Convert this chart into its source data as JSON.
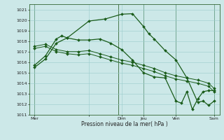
{
  "background_color": "#cce8e8",
  "grid_color": "#99cccc",
  "line_color": "#1a5c1a",
  "vline_color": "#336633",
  "ylim": [
    1011,
    1021.5
  ],
  "yticks": [
    1011,
    1012,
    1013,
    1014,
    1015,
    1016,
    1017,
    1018,
    1019,
    1020,
    1021
  ],
  "xlim": [
    0,
    17.5
  ],
  "day_positions": [
    0.5,
    5.5,
    8.5,
    10.5,
    13.5,
    17.0
  ],
  "day_labels": [
    "Mer",
    "",
    "Dim",
    "Jeu",
    "Ven",
    "Sam"
  ],
  "vline_positions": [
    0.5,
    8.2,
    10.5,
    13.5,
    17.0
  ],
  "xlabel": "Pression niveau de la mer( hPa )",
  "line1_x": [
    0.5,
    1.5,
    2.5,
    3.5,
    4.5,
    5.5,
    6.5,
    7.5,
    8.5,
    9.5,
    10.5,
    11.5,
    12.5,
    13.5,
    14.5,
    15.5,
    16.5,
    17.0
  ],
  "line1_y": [
    1017.5,
    1017.7,
    1017.2,
    1017.0,
    1017.0,
    1017.1,
    1016.8,
    1016.5,
    1016.2,
    1016.0,
    1015.7,
    1015.4,
    1015.0,
    1014.7,
    1014.5,
    1014.3,
    1014.0,
    1013.5
  ],
  "line2_x": [
    0.5,
    1.5,
    2.5,
    3.5,
    4.5,
    5.5,
    6.5,
    7.5,
    8.5,
    9.5,
    10.5,
    11.5,
    12.5,
    13.5,
    14.5,
    15.5,
    16.5,
    17.0
  ],
  "line2_y": [
    1017.3,
    1017.5,
    1017.0,
    1016.8,
    1016.7,
    1016.8,
    1016.5,
    1016.2,
    1015.9,
    1015.7,
    1015.4,
    1015.1,
    1014.7,
    1014.4,
    1014.2,
    1014.0,
    1013.7,
    1013.2
  ],
  "line3_x": [
    0.5,
    1.5,
    2.5,
    3.5,
    5.5,
    7.0,
    8.5,
    9.5,
    10.5,
    11.0,
    11.5,
    12.5,
    13.5,
    14.5,
    15.5,
    16.0,
    16.5,
    17.0
  ],
  "line3_y": [
    1015.5,
    1016.3,
    1017.8,
    1018.3,
    1019.9,
    1020.1,
    1020.55,
    1020.6,
    1019.4,
    1018.7,
    1018.2,
    1017.1,
    1016.2,
    1014.5,
    1012.2,
    1012.3,
    1011.9,
    1012.3
  ],
  "line4_x": [
    0.5,
    1.5,
    2.5,
    3.0,
    3.5,
    4.5,
    5.5,
    6.5,
    7.5,
    8.5,
    9.5,
    10.5,
    11.5,
    12.5,
    13.5,
    14.0,
    14.5,
    15.0,
    15.5,
    16.0,
    16.5,
    17.0
  ],
  "line4_y": [
    1015.7,
    1016.6,
    1018.2,
    1018.5,
    1018.3,
    1018.1,
    1018.1,
    1018.2,
    1017.8,
    1017.2,
    1016.2,
    1015.0,
    1014.6,
    1014.5,
    1012.3,
    1012.1,
    1013.2,
    1011.5,
    1012.5,
    1013.2,
    1013.3,
    1013.3
  ]
}
